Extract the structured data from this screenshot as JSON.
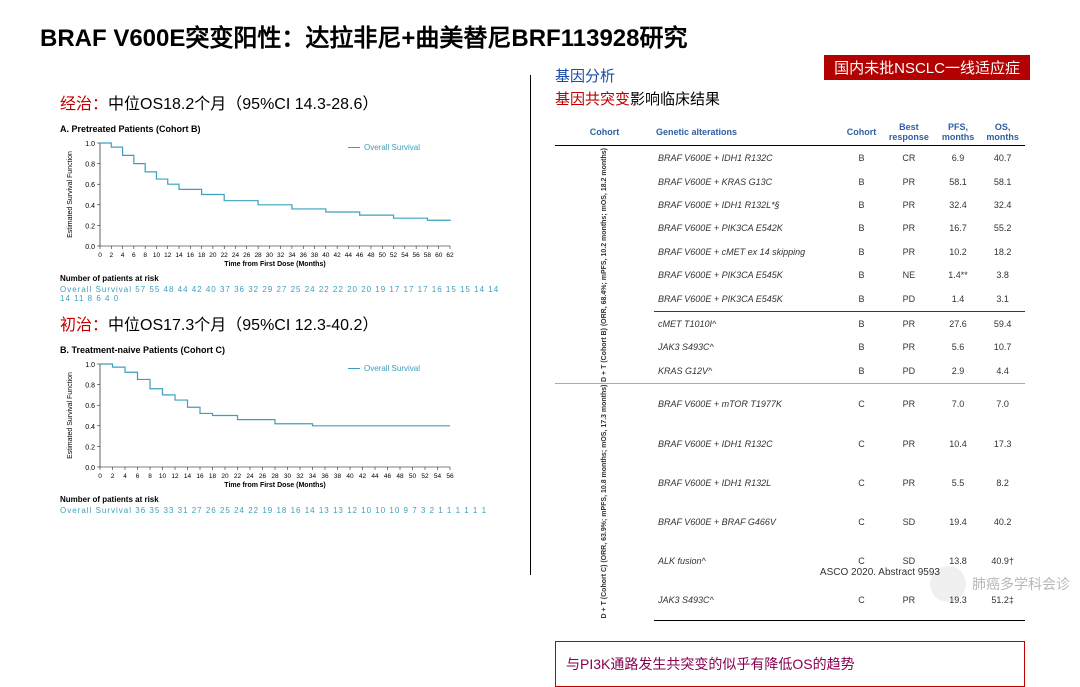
{
  "title": "BRAF V600E突变阳性：达拉非尼+曲美替尼BRF113928研究",
  "badge": "国内未批NSCLC一线适应症",
  "left": {
    "sub1_prefix": "经治：",
    "sub1_rest": "中位OS18.2个月（95%CI 14.3-28.6）",
    "chartA_title": "A.   Pretreated Patients (Cohort B)",
    "chartA_legend": "Overall Survival",
    "chartA_ylabel": "Estimated Survival Function",
    "chartA_xlabel": "Time from First Dose (Months)",
    "riskA_title": "Number of patients at risk",
    "riskA_label": "Overall Survival",
    "riskA_values": "57 55 48 44 42 40 37 36 32 29 27 25 24 22 22 20 20 19 17 17 17 16 15 15 14 14 14 11 8 6 4 0",
    "sub2_prefix": "初治：",
    "sub2_rest": "中位OS17.3个月（95%CI 12.3-40.2）",
    "chartB_title": "B.   Treatment-naive Patients (Cohort C)",
    "chartB_legend": "Overall Survival",
    "riskB_title": "Number of patients at risk",
    "riskB_values": "36 35 33 31 27 26 25 24 22 19 18 16 14 13 13 12 10 10 10 9 7 3 2 1 1 1 1 1 1"
  },
  "right": {
    "line1": "基因分析",
    "line2_r": "基因共突变",
    "line2_k": "影响临床结果",
    "headers": [
      "Cohort",
      "Genetic alterations",
      "Cohort",
      "Best\nresponse",
      "PFS,\nmonths",
      "OS,\nmonths"
    ],
    "groupB_label": "D + T (Cohort B)\n(ORR, 68.4%;\nmPFS, 10.2 months;\nmOS, 18.2 months)",
    "groupC_label": "D + T (Cohort C)\n(ORR, 63.9%;\nmPFS, 10.8 months;\nmOS, 17.3 months)",
    "rows": [
      {
        "alt": "BRAF V600E + IDH1 R132C",
        "c": "B",
        "br": "CR",
        "pfs": "6.9",
        "os": "40.7",
        "hl": false,
        "sep": false
      },
      {
        "alt": "BRAF V600E + KRAS G13C",
        "c": "B",
        "br": "PR",
        "pfs": "58.1",
        "os": "58.1",
        "hl": false,
        "sep": false
      },
      {
        "alt": "BRAF V600E + IDH1 R132L*§",
        "c": "B",
        "br": "PR",
        "pfs": "32.4",
        "os": "32.4",
        "hl": false,
        "sep": false
      },
      {
        "alt": "BRAF V600E + PIK3CA E542K",
        "c": "B",
        "br": "PR",
        "pfs": "16.7",
        "os": "55.2",
        "hl": false,
        "sep": false
      },
      {
        "alt": "BRAF V600E + cMET ex 14 skipping",
        "c": "B",
        "br": "PR",
        "pfs": "10.2",
        "os": "18.2",
        "hl": false,
        "sep": false
      },
      {
        "alt": "BRAF V600E + PIK3CA E545K",
        "c": "B",
        "br": "NE",
        "pfs": "1.4**",
        "os": "3.8",
        "hl": false,
        "sep": false
      },
      {
        "alt": "BRAF V600E + PIK3CA E545K",
        "c": "B",
        "br": "PD",
        "pfs": "1.4",
        "os": "3.1",
        "hl": true,
        "sep": false
      },
      {
        "alt": "cMET T1010I^",
        "c": "B",
        "br": "PR",
        "pfs": "27.6",
        "os": "59.4",
        "hl": false,
        "sep": false
      },
      {
        "alt": "JAK3 S493C^",
        "c": "B",
        "br": "PR",
        "pfs": "5.6",
        "os": "10.7",
        "hl": false,
        "sep": false
      },
      {
        "alt": "KRAS G12V^",
        "c": "B",
        "br": "PD",
        "pfs": "2.9",
        "os": "4.4",
        "hl": false,
        "sep": false
      },
      {
        "alt": "BRAF V600E + mTOR T1977K",
        "c": "C",
        "br": "PR",
        "pfs": "7.0",
        "os": "7.0",
        "hl": false,
        "sep": true
      },
      {
        "alt": "BRAF V600E + IDH1 R132C",
        "c": "C",
        "br": "PR",
        "pfs": "10.4",
        "os": "17.3",
        "hl": false,
        "sep": false
      },
      {
        "alt": "BRAF V600E + IDH1 R132L",
        "c": "C",
        "br": "PR",
        "pfs": "5.5",
        "os": "8.2",
        "hl": false,
        "sep": false
      },
      {
        "alt": "BRAF V600E + BRAF G466V",
        "c": "C",
        "br": "SD",
        "pfs": "19.4",
        "os": "40.2",
        "hl": false,
        "sep": false
      },
      {
        "alt": "ALK fusion^",
        "c": "C",
        "br": "SD",
        "pfs": "13.8",
        "os": "40.9†",
        "hl": false,
        "sep": false
      },
      {
        "alt": "JAK3 S493C^",
        "c": "C",
        "br": "PR",
        "pfs": "19.3",
        "os": "51.2‡",
        "hl": false,
        "sep": false
      }
    ],
    "conclusion": "与PI3K通路发生共突变的似乎有降低OS的趋势"
  },
  "citation": "ASCO 2020. Abstract 9593",
  "watermark": "肺癌多学科会诊",
  "chartA_curve": {
    "color": "#3ca0bd",
    "points": [
      [
        0,
        1.0
      ],
      [
        2,
        0.96
      ],
      [
        4,
        0.88
      ],
      [
        6,
        0.8
      ],
      [
        8,
        0.72
      ],
      [
        10,
        0.65
      ],
      [
        12,
        0.6
      ],
      [
        14,
        0.55
      ],
      [
        18,
        0.5
      ],
      [
        22,
        0.44
      ],
      [
        28,
        0.4
      ],
      [
        34,
        0.36
      ],
      [
        40,
        0.33
      ],
      [
        46,
        0.3
      ],
      [
        52,
        0.27
      ],
      [
        58,
        0.25
      ],
      [
        62,
        0.24
      ]
    ],
    "xlim": [
      0,
      62
    ],
    "ylim": [
      0,
      1.0
    ],
    "xtick": 2,
    "ytick": 0.2
  },
  "chartB_curve": {
    "color": "#3ca0bd",
    "points": [
      [
        0,
        1.0
      ],
      [
        2,
        0.97
      ],
      [
        4,
        0.92
      ],
      [
        6,
        0.85
      ],
      [
        8,
        0.76
      ],
      [
        10,
        0.7
      ],
      [
        12,
        0.65
      ],
      [
        14,
        0.58
      ],
      [
        16,
        0.52
      ],
      [
        18,
        0.5
      ],
      [
        22,
        0.46
      ],
      [
        28,
        0.42
      ],
      [
        34,
        0.4
      ],
      [
        40,
        0.4
      ],
      [
        46,
        0.4
      ],
      [
        52,
        0.4
      ],
      [
        56,
        0.4
      ]
    ],
    "xlim": [
      0,
      56
    ],
    "ylim": [
      0,
      1.0
    ],
    "xtick": 2,
    "ytick": 0.2
  }
}
